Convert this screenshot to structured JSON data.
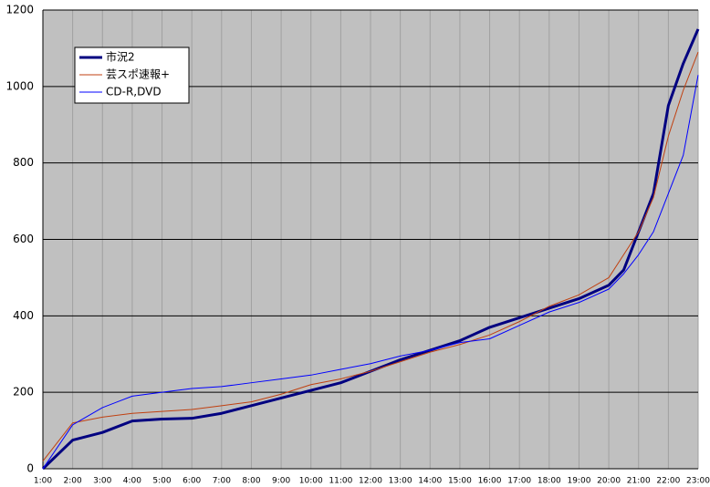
{
  "chart_data": {
    "type": "line",
    "x": [
      1,
      2,
      3,
      4,
      5,
      6,
      7,
      8,
      9,
      10,
      11,
      12,
      13,
      14,
      15,
      16,
      17,
      18,
      19,
      20,
      20.5,
      21,
      21.5,
      22,
      22.5,
      23
    ],
    "series": [
      {
        "name": "市況2",
        "color": "#000080",
        "width": 3,
        "values": [
          0,
          75,
          95,
          125,
          130,
          132,
          145,
          165,
          185,
          205,
          225,
          255,
          285,
          310,
          335,
          370,
          395,
          420,
          445,
          480,
          520,
          620,
          720,
          950,
          1060,
          1150
        ]
      },
      {
        "name": "芸スポ速報+",
        "color": "#c04010",
        "width": 1,
        "values": [
          20,
          120,
          135,
          145,
          150,
          155,
          165,
          175,
          195,
          220,
          235,
          255,
          280,
          305,
          325,
          350,
          385,
          425,
          455,
          500,
          560,
          620,
          710,
          870,
          990,
          1090
        ]
      },
      {
        "name": "CD-R,DVD",
        "color": "#0000ff",
        "width": 1,
        "values": [
          0,
          115,
          160,
          190,
          200,
          210,
          215,
          225,
          235,
          245,
          260,
          275,
          295,
          310,
          330,
          340,
          375,
          410,
          435,
          470,
          510,
          560,
          620,
          720,
          820,
          1030
        ]
      }
    ],
    "xlim": [
      1,
      23
    ],
    "xticks": [
      {
        "value": 1,
        "label": "1:00"
      },
      {
        "value": 2,
        "label": "2:00"
      },
      {
        "value": 3,
        "label": "3:00"
      },
      {
        "value": 4,
        "label": "4:00"
      },
      {
        "value": 5,
        "label": "5:00"
      },
      {
        "value": 6,
        "label": "6:00"
      },
      {
        "value": 7,
        "label": "7:00"
      },
      {
        "value": 8,
        "label": "8:00"
      },
      {
        "value": 9,
        "label": "9:00"
      },
      {
        "value": 10,
        "label": "10:00"
      },
      {
        "value": 11,
        "label": "11:00"
      },
      {
        "value": 12,
        "label": "12:00"
      },
      {
        "value": 13,
        "label": "13:00"
      },
      {
        "value": 14,
        "label": "14:00"
      },
      {
        "value": 15,
        "label": "15:00"
      },
      {
        "value": 16,
        "label": "16:00"
      },
      {
        "value": 17,
        "label": "17:00"
      },
      {
        "value": 18,
        "label": "18:00"
      },
      {
        "value": 19,
        "label": "19:00"
      },
      {
        "value": 20,
        "label": "20:00"
      },
      {
        "value": 21,
        "label": "21:00"
      },
      {
        "value": 22,
        "label": "22:00"
      },
      {
        "value": 23,
        "label": "23:00"
      }
    ],
    "ylim": [
      0,
      1200
    ],
    "yticks": [
      0,
      200,
      400,
      600,
      800,
      1000,
      1200
    ],
    "grid": true,
    "legend": "upper left"
  }
}
